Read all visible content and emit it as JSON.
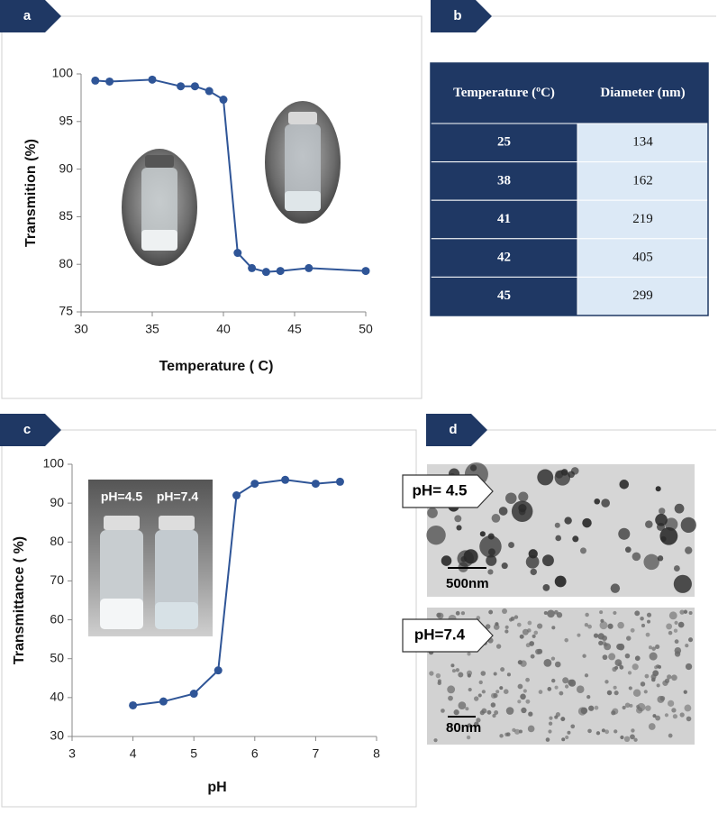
{
  "panels": [
    "a",
    "b",
    "c",
    "d"
  ],
  "chart_data": [
    {
      "type": "line",
      "x_label": "Temperature ( C)",
      "y_label": "Transmition (%)",
      "x": [
        31,
        32,
        35,
        37,
        38,
        39,
        40,
        41,
        42,
        43,
        44,
        46,
        50
      ],
      "values": [
        99.3,
        99.2,
        99.4,
        98.7,
        98.7,
        98.2,
        97.3,
        81.2,
        79.6,
        79.2,
        79.3,
        79.6,
        79.3
      ],
      "color": "#2f5597",
      "xlim": [
        30,
        50
      ],
      "xticks": [
        30,
        35,
        40,
        45,
        50
      ],
      "ylim": [
        75,
        100
      ],
      "yticks": [
        75,
        80,
        85,
        90,
        95,
        100
      ]
    },
    {
      "type": "line",
      "x_label": "pH",
      "y_label": "Transmittance ( %)",
      "x": [
        4,
        4.5,
        5,
        5.4,
        5.7,
        6,
        6.5,
        7,
        7.4
      ],
      "values": [
        38,
        39,
        41,
        47,
        92,
        95,
        96,
        95,
        95.5
      ],
      "color": "#2f5597",
      "xlim": [
        3,
        8
      ],
      "xticks": [
        3,
        4,
        5,
        6,
        7,
        8
      ],
      "ylim": [
        30,
        100
      ],
      "yticks": [
        30,
        40,
        50,
        60,
        70,
        80,
        90,
        100
      ],
      "annotations": [
        "pH=4.5",
        "pH=7.4"
      ]
    }
  ],
  "table": {
    "columns": [
      "Temperature (ºC)",
      "Diameter (nm)"
    ],
    "rows": [
      [
        25,
        134
      ],
      [
        38,
        162
      ],
      [
        41,
        219
      ],
      [
        42,
        405
      ],
      [
        45,
        299
      ]
    ]
  },
  "micrographs": [
    {
      "label": "pH= 4.5",
      "scale": "500nm"
    },
    {
      "label": "pH=7.4",
      "scale": "80nm"
    }
  ]
}
